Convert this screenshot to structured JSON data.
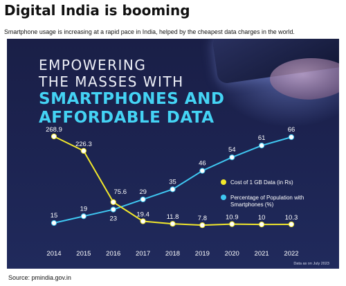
{
  "header": {
    "title": "Digital India is booming",
    "subtitle": "Smartphone usage is increasing at a rapid pace in India, helped by the cheapest data charges in the world."
  },
  "hero": {
    "line1": "EMPOWERING",
    "line2": "THE MASSES WITH",
    "line3": "SMARTPHONES AND",
    "line4": "AFFORDABLE DATA"
  },
  "footnote": "Data as on July 2023",
  "source": "Source: pmindia.gov.in",
  "colors": {
    "data_cost": "#f3e92b",
    "smartphones": "#3fc8f2",
    "background": "#1c2350",
    "hero_accent": "#44d3f4"
  },
  "chart_data": {
    "type": "line",
    "x": [
      "2014",
      "2015",
      "2016",
      "2017",
      "2018",
      "2019",
      "2020",
      "2021",
      "2022"
    ],
    "series": [
      {
        "name": "Cost of 1 GB Data (in Rs)",
        "values": [
          268.9,
          226.3,
          75.6,
          19.4,
          11.8,
          7.8,
          10.9,
          10,
          10.3
        ],
        "labels": [
          "268.9",
          "226.3",
          "75.6",
          "19.4",
          "11.8",
          "7.8",
          "10.9",
          "10",
          "10.3"
        ],
        "color": "#f3e92b"
      },
      {
        "name": "Percentage of Population with Smartphones (%)",
        "values": [
          15,
          19,
          23,
          29,
          35,
          46,
          54,
          61,
          66
        ],
        "labels": [
          "15",
          "19",
          "23",
          "29",
          "35",
          "46",
          "54",
          "61",
          "66"
        ],
        "color": "#3fc8f2"
      }
    ],
    "legend": {
      "position": "right",
      "items": [
        "Cost of 1 GB Data (in Rs)",
        "Percentage of Population with Smartphones (%)"
      ]
    },
    "grid": false,
    "xlabel": "",
    "ylabel": ""
  }
}
